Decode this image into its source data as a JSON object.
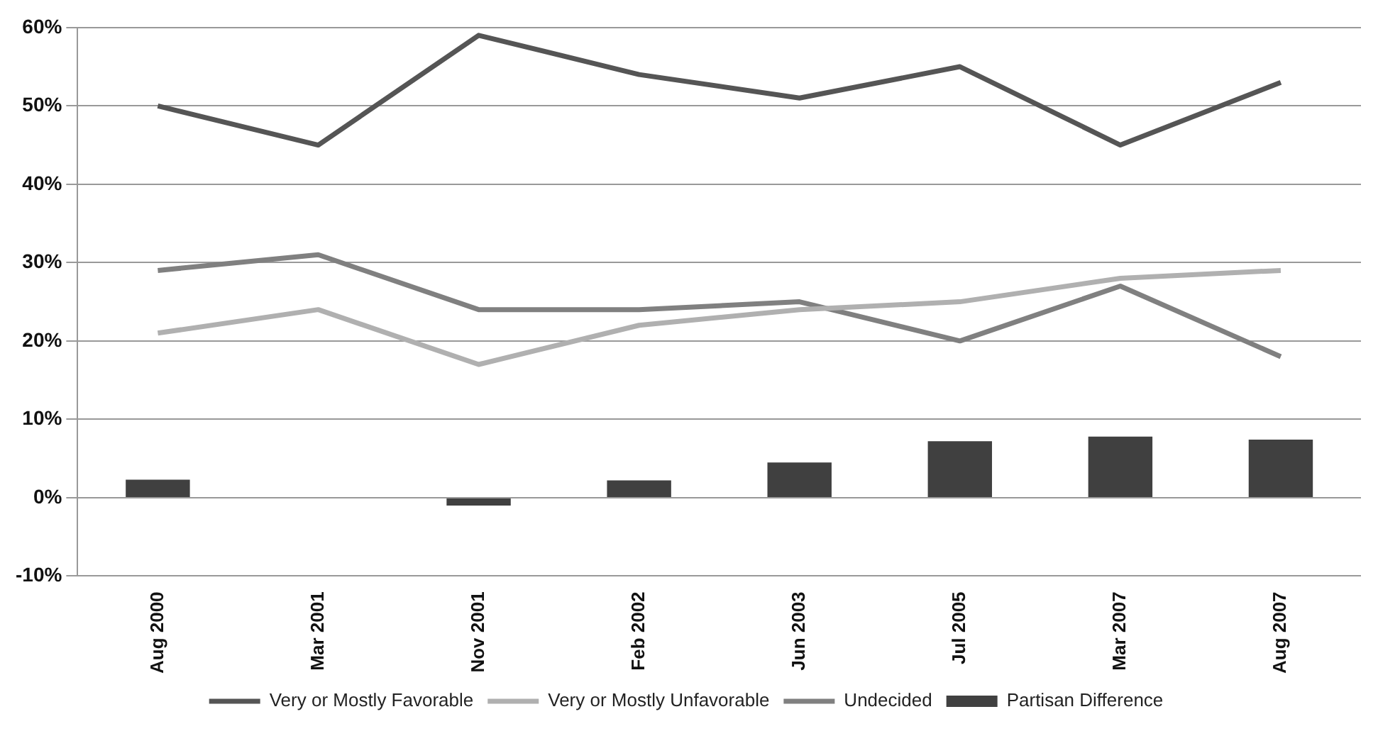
{
  "chart_data": {
    "type": "line",
    "categories": [
      "Aug 2000",
      "Mar 2001",
      "Nov 2001",
      "Feb 2002",
      "Jun 2003",
      "Jul 2005",
      "Mar 2007",
      "Aug 2007"
    ],
    "series": [
      {
        "name": "Partisan Difference",
        "type": "bar",
        "color": "#404040",
        "values": [
          2.3,
          0,
          -1,
          2.2,
          4.5,
          7.2,
          7.8,
          7.4
        ]
      },
      {
        "name": "Very or Mostly Favorable",
        "color": "#555555",
        "values": [
          50,
          45,
          59,
          54,
          51,
          55,
          45,
          53
        ]
      },
      {
        "name": "Very or Mostly Unfavorable",
        "color": "#b0b0b0",
        "values": [
          21,
          24,
          17,
          22,
          24,
          25,
          28,
          29
        ]
      },
      {
        "name": "Undecided",
        "color": "#808080",
        "values": [
          29,
          31,
          24,
          24,
          25,
          20,
          27,
          18
        ]
      }
    ],
    "ylim": [
      -10,
      60
    ],
    "yticks": [
      {
        "value": -10,
        "label": "-10%"
      },
      {
        "value": 0,
        "label": "0%"
      },
      {
        "value": 10,
        "label": "10%"
      },
      {
        "value": 20,
        "label": "20%"
      },
      {
        "value": 30,
        "label": "30%"
      },
      {
        "value": 40,
        "label": "40%"
      },
      {
        "value": 50,
        "label": "50%"
      },
      {
        "value": 60,
        "label": "60%"
      }
    ],
    "grid": "y",
    "legend": "bottom",
    "marker": "none",
    "line_style": "solid"
  }
}
